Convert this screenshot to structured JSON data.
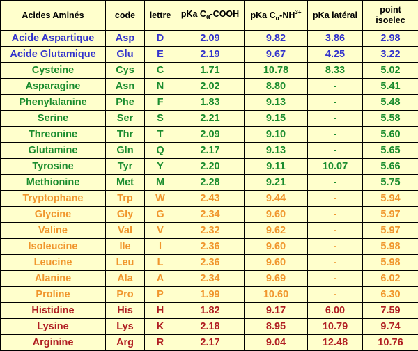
{
  "table": {
    "headers": {
      "name": "Acides Aminés",
      "code": "code",
      "letter": "lettre",
      "pka_cooh_prefix": "pKa C",
      "pka_cooh_sub": "α",
      "pka_cooh_suffix": "-COOH",
      "pka_nh_prefix": "pKa C",
      "pka_nh_sub": "α",
      "pka_nh_suffix": "-NH",
      "pka_nh_sup": "3+",
      "pka_side": "pKa latéral",
      "pi_line1": "point",
      "pi_line2": "isoelec"
    },
    "colors": {
      "acid": "#3333cc",
      "polar": "#1a8c2e",
      "apolar": "#f0962d",
      "basic": "#b01e22",
      "background": "#ffffcc"
    },
    "rows": [
      {
        "group": "acid",
        "name": "Acide Aspartique",
        "code": "Asp",
        "letter": "D",
        "pka_cooh": "2.09",
        "pka_nh": "9.82",
        "pka_side": "3.86",
        "pi": "2.98"
      },
      {
        "group": "acid",
        "name": "Acide Glutamique",
        "code": "Glu",
        "letter": "E",
        "pka_cooh": "2.19",
        "pka_nh": "9.67",
        "pka_side": "4.25",
        "pi": "3.22"
      },
      {
        "group": "polar",
        "name": "Cysteine",
        "code": "Cys",
        "letter": "C",
        "pka_cooh": "1.71",
        "pka_nh": "10.78",
        "pka_side": "8.33",
        "pi": "5.02"
      },
      {
        "group": "polar",
        "name": "Asparagine",
        "code": "Asn",
        "letter": "N",
        "pka_cooh": "2.02",
        "pka_nh": "8.80",
        "pka_side": "-",
        "pi": "5.41"
      },
      {
        "group": "polar",
        "name": "Phenylalanine",
        "code": "Phe",
        "letter": "F",
        "pka_cooh": "1.83",
        "pka_nh": "9.13",
        "pka_side": "-",
        "pi": "5.48"
      },
      {
        "group": "polar",
        "name": "Serine",
        "code": "Ser",
        "letter": "S",
        "pka_cooh": "2.21",
        "pka_nh": "9.15",
        "pka_side": "-",
        "pi": "5.58"
      },
      {
        "group": "polar",
        "name": "Threonine",
        "code": "Thr",
        "letter": "T",
        "pka_cooh": "2.09",
        "pka_nh": "9.10",
        "pka_side": "-",
        "pi": "5.60"
      },
      {
        "group": "polar",
        "name": "Glutamine",
        "code": "Gln",
        "letter": "Q",
        "pka_cooh": "2.17",
        "pka_nh": "9.13",
        "pka_side": "-",
        "pi": "5.65"
      },
      {
        "group": "polar",
        "name": "Tyrosine",
        "code": "Tyr",
        "letter": "Y",
        "pka_cooh": "2.20",
        "pka_nh": "9.11",
        "pka_side": "10.07",
        "pi": "5.66"
      },
      {
        "group": "polar",
        "name": "Methionine",
        "code": "Met",
        "letter": "M",
        "pka_cooh": "2.28",
        "pka_nh": "9.21",
        "pka_side": "-",
        "pi": "5.75"
      },
      {
        "group": "apolar",
        "name": "Tryptophane",
        "code": "Trp",
        "letter": "W",
        "pka_cooh": "2.43",
        "pka_nh": "9.44",
        "pka_side": "-",
        "pi": "5.94"
      },
      {
        "group": "apolar",
        "name": "Glycine",
        "code": "Gly",
        "letter": "G",
        "pka_cooh": "2.34",
        "pka_nh": "9.60",
        "pka_side": "-",
        "pi": "5.97"
      },
      {
        "group": "apolar",
        "name": "Valine",
        "code": "Val",
        "letter": "V",
        "pka_cooh": "2.32",
        "pka_nh": "9.62",
        "pka_side": "-",
        "pi": "5.97"
      },
      {
        "group": "apolar",
        "name": "Isoleucine",
        "code": "Ile",
        "letter": "I",
        "pka_cooh": "2.36",
        "pka_nh": "9.60",
        "pka_side": "-",
        "pi": "5.98"
      },
      {
        "group": "apolar",
        "name": "Leucine",
        "code": "Leu",
        "letter": "L",
        "pka_cooh": "2.36",
        "pka_nh": "9.60",
        "pka_side": "-",
        "pi": "5.98"
      },
      {
        "group": "apolar",
        "name": "Alanine",
        "code": "Ala",
        "letter": "A",
        "pka_cooh": "2.34",
        "pka_nh": "9.69",
        "pka_side": "-",
        "pi": "6.02"
      },
      {
        "group": "apolar",
        "name": "Proline",
        "code": "Pro",
        "letter": "P",
        "pka_cooh": "1.99",
        "pka_nh": "10.60",
        "pka_side": "-",
        "pi": "6.30"
      },
      {
        "group": "basic",
        "name": "Histidine",
        "code": "His",
        "letter": "H",
        "pka_cooh": "1.82",
        "pka_nh": "9.17",
        "pka_side": "6.00",
        "pi": "7.59"
      },
      {
        "group": "basic",
        "name": "Lysine",
        "code": "Lys",
        "letter": "K",
        "pka_cooh": "2.18",
        "pka_nh": "8.95",
        "pka_side": "10.79",
        "pi": "9.74"
      },
      {
        "group": "basic",
        "name": "Arginine",
        "code": "Arg",
        "letter": "R",
        "pka_cooh": "2.17",
        "pka_nh": "9.04",
        "pka_side": "12.48",
        "pi": "10.76"
      }
    ]
  }
}
